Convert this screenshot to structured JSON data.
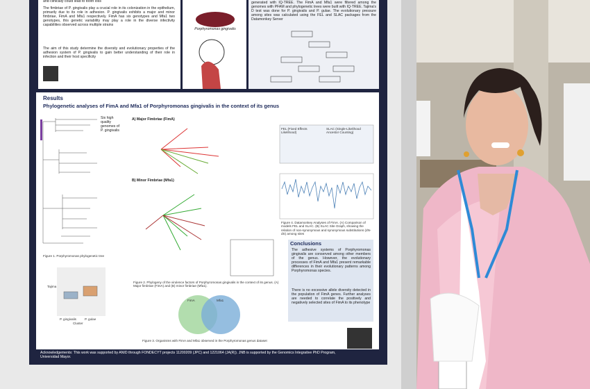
{
  "poster": {
    "intro": {
      "top_fragment": "and clinically could lead to tooth loss",
      "paragraph_1": "The fimbriae of P. gingivalis play a crucial role in its colonization in the epithelium, primarily due to its role in adhesion. P. gingivalis exhibits a major and minor fimbriae, FimA and Mfa1 respectively. FimA has six genotypes and Mfa1 two genotypes, this genetic variability may play a role in the diverse infectivity capabilities observed across multiple strains",
      "paragraph_2": "The aim of this study determine the diversity and evolutionary properties of the adhesion system of P. gingivalis to gain better understanding of their role in infection and their host specificity"
    },
    "image_label": "Porphyromonas gingivalis",
    "methods": "generated with IQ-TREE. The FimA and Mfa1 were filtered among the genomes with PFAM and phylogenetic trees were built with IQ-TREE. Tajima's D test was done for P. gingivalis and P. gulae. The evolutionary pressure among sites was calculated using the FEL and SLAC packages from the Datamonkey Server",
    "results": {
      "heading": "Results",
      "title": "Phylogenetic analyses of FimA and Mfa1 of Porphyromonas gingivalis in the context of its genus",
      "genomes_note": "Six high quality genomes of P. gingivalis",
      "panel_a": "A) Major Fimbriae (FimA)",
      "panel_b": "B) Minor Fimbriae (Mfa1)",
      "table_headers": [
        "FEL (Fixed Effects Likelihood)",
        "SLAC (Single-Likelihood Ancestor Counting)"
      ],
      "venn": [
        "FimA",
        "Mfa1"
      ],
      "boxplot": {
        "y_label": "Tajima",
        "x_label": "Cluster",
        "groups": [
          "P. gingivalis",
          "P. gulae"
        ]
      },
      "captions": {
        "fig1": "Figure 1. Porphyromonas phylogenetic tree",
        "fig2": "Figure 2. Phylogeny of the virulence factors of Porphyromonas gingivalis in the context of its genus. (A) Major fimbriae (FimA) and (B) minor fimbriae (Mfa1).",
        "fig3": "Figure 3. Organisms with FimA and Mfa1 observed in the Porphyromonas genus dataset",
        "fig4": "Figure 4. Datamonkey Analyses of FimA. (A) Comparison of models FEL and SLAC. (B) SLAC Site Graph, showing the relation of non-synonymous and synonymous substitutions (dN-dS) among sites"
      }
    },
    "conclusions": {
      "heading": "Conclusions",
      "items": [
        "The adhesive systems of Porphyromonas gingivalis are conserved among other members of the genus. However, the evolutionary processes of FimA and Mfa1 present remarkable differences in their evolutionary patterns among Porphyromonas species.",
        "There is no excessive allele diversity detected in the population of FimA genes. Further analyses are needed to correlate the positively and negatively selected sites of FimA to its phenotype"
      ]
    },
    "acknowledgements": "Acknowledgements: This work was supported by ANID through FONDECYT projects 11200209 (JPC) and 1221064 (JA(R)). JNB is supported by the Genomics Integrative PhD Program, Universidad Mayor."
  }
}
